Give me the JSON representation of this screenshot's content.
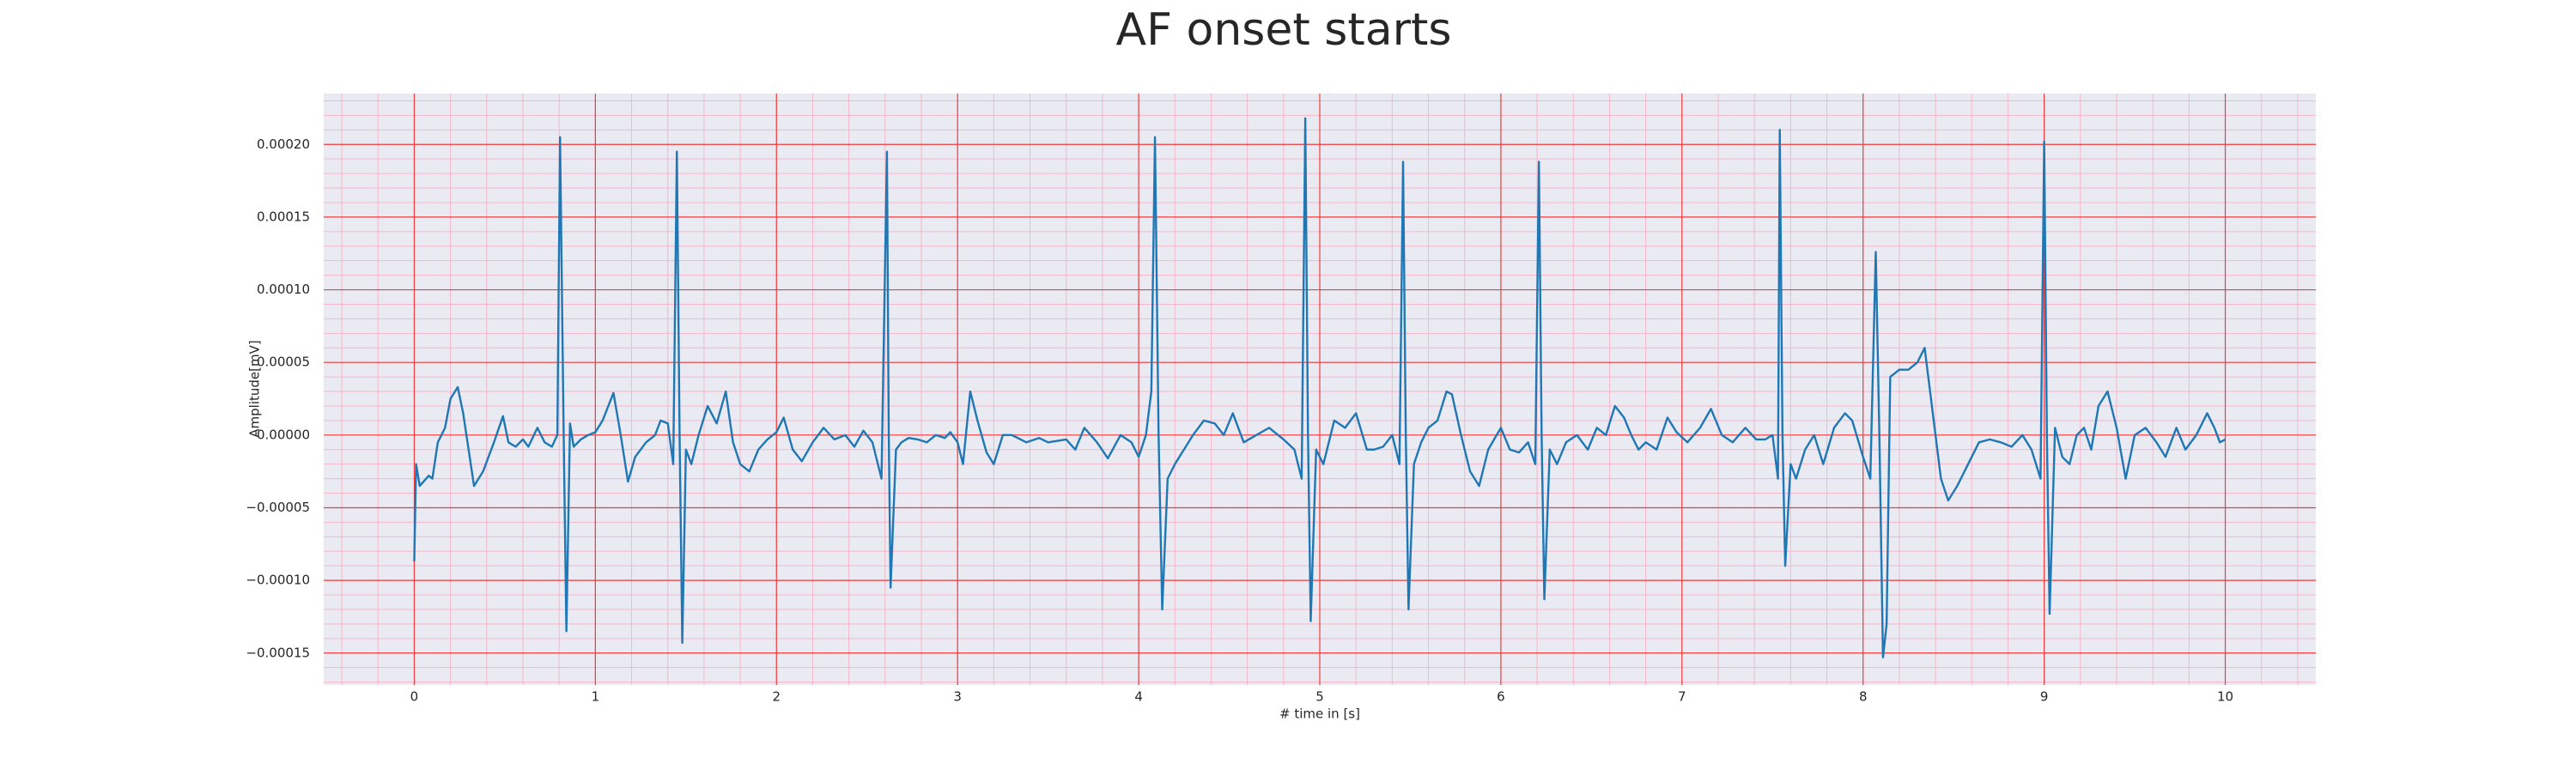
{
  "chart_data": {
    "type": "line",
    "title": "AF onset starts",
    "xlabel": "# time in [s]",
    "ylabel": "Amplitude[mV]",
    "color": "#1f77b4",
    "grid": true,
    "xlim": [
      -0.5,
      10.5
    ],
    "ylim": [
      -0.000172,
      0.000235
    ],
    "xticks": [
      0,
      1,
      2,
      3,
      4,
      5,
      6,
      7,
      8,
      9,
      10
    ],
    "yticks": [
      {
        "value": -0.00015,
        "label": "−0.00015"
      },
      {
        "value": -0.0001,
        "label": "−0.00010"
      },
      {
        "value": -5e-05,
        "label": "−0.00005"
      },
      {
        "value": 0,
        "label": "0.00000"
      },
      {
        "value": 5e-05,
        "label": "0.00005"
      },
      {
        "value": 0.0001,
        "label": "0.00010"
      },
      {
        "value": 0.00015,
        "label": "0.00015"
      },
      {
        "value": 0.0002,
        "label": "0.00020"
      }
    ],
    "x": [
      0,
      0.01,
      0.03,
      0.08,
      0.1,
      0.13,
      0.17,
      0.2,
      0.24,
      0.27,
      0.33,
      0.38,
      0.44,
      0.49,
      0.52,
      0.56,
      0.6,
      0.63,
      0.68,
      0.72,
      0.76,
      0.79,
      0.805,
      0.825,
      0.84,
      0.86,
      0.88,
      0.92,
      0.96,
      1.0,
      1.04,
      1.1,
      1.14,
      1.18,
      1.22,
      1.28,
      1.33,
      1.36,
      1.4,
      1.43,
      1.45,
      1.465,
      1.48,
      1.5,
      1.53,
      1.57,
      1.62,
      1.67,
      1.72,
      1.76,
      1.8,
      1.85,
      1.9,
      1.95,
      2.0,
      2.04,
      2.09,
      2.14,
      2.2,
      2.26,
      2.32,
      2.38,
      2.43,
      2.48,
      2.53,
      2.58,
      2.61,
      2.62,
      2.63,
      2.66,
      2.69,
      2.73,
      2.78,
      2.83,
      2.88,
      2.93,
      2.96,
      3.0,
      3.03,
      3.07,
      3.11,
      3.16,
      3.2,
      3.25,
      3.3,
      3.38,
      3.45,
      3.5,
      3.6,
      3.65,
      3.7,
      3.77,
      3.83,
      3.9,
      3.96,
      4.0,
      4.04,
      4.07,
      4.09,
      4.11,
      4.13,
      4.16,
      4.2,
      4.25,
      4.3,
      4.36,
      4.42,
      4.47,
      4.52,
      4.58,
      4.65,
      4.72,
      4.8,
      4.86,
      4.9,
      4.92,
      4.935,
      4.95,
      4.98,
      5.02,
      5.08,
      5.14,
      5.2,
      5.26,
      5.3,
      5.35,
      5.4,
      5.44,
      5.46,
      5.475,
      5.49,
      5.52,
      5.56,
      5.6,
      5.65,
      5.7,
      5.73,
      5.78,
      5.83,
      5.88,
      5.93,
      6.0,
      6.05,
      6.1,
      6.15,
      6.19,
      6.21,
      6.225,
      6.24,
      6.27,
      6.31,
      6.36,
      6.42,
      6.48,
      6.53,
      6.58,
      6.63,
      6.68,
      6.72,
      6.76,
      6.8,
      6.86,
      6.92,
      6.97,
      7.03,
      7.1,
      7.16,
      7.22,
      7.28,
      7.35,
      7.41,
      7.46,
      7.5,
      7.53,
      7.54,
      7.555,
      7.57,
      7.6,
      7.63,
      7.68,
      7.73,
      7.78,
      7.84,
      7.9,
      7.94,
      8.0,
      8.04,
      8.07,
      8.09,
      8.11,
      8.13,
      8.15,
      8.2,
      8.25,
      8.3,
      8.34,
      8.38,
      8.43,
      8.47,
      8.52,
      8.58,
      8.64,
      8.7,
      8.76,
      8.82,
      8.88,
      8.93,
      8.98,
      9.0,
      9.015,
      9.03,
      9.06,
      9.1,
      9.14,
      9.18,
      9.22,
      9.26,
      9.3,
      9.35,
      9.4,
      9.45,
      9.5,
      9.56,
      9.62,
      9.67,
      9.73,
      9.78,
      9.84,
      9.9,
      9.94,
      9.97,
      10.0
    ],
    "values": [
      -8.7e-05,
      -2e-05,
      -3.5e-05,
      -2.8e-05,
      -3e-05,
      -5e-06,
      5e-06,
      2.5e-05,
      3.3e-05,
      1.5e-05,
      -3.5e-05,
      -2.5e-05,
      -5e-06,
      1.3e-05,
      -5e-06,
      -8e-06,
      -3e-06,
      -8e-06,
      5e-06,
      -5e-06,
      -8e-06,
      0,
      0.000205,
      0,
      -0.000135,
      8e-06,
      -8e-06,
      -3e-06,
      0,
      2e-06,
      1e-05,
      2.9e-05,
      0,
      -3.2e-05,
      -1.5e-05,
      -5e-06,
      0,
      1e-05,
      8e-06,
      -2e-05,
      0.000195,
      0,
      -0.000143,
      -1e-05,
      -2e-05,
      0,
      2e-05,
      8e-06,
      3e-05,
      -5e-06,
      -2e-05,
      -2.5e-05,
      -1e-05,
      -3e-06,
      2e-06,
      1.2e-05,
      -1e-05,
      -1.8e-05,
      -5e-06,
      5e-06,
      -3e-06,
      0,
      -8e-06,
      3e-06,
      -5e-06,
      -3e-05,
      0.000195,
      0,
      -0.000105,
      -1e-05,
      -5e-06,
      -2e-06,
      -3e-06,
      -5e-06,
      0,
      -2e-06,
      2e-06,
      -5e-06,
      -2e-05,
      3e-05,
      1e-05,
      -1.2e-05,
      -2e-05,
      0,
      0,
      -5e-06,
      -2e-06,
      -5e-06,
      -3e-06,
      -1e-05,
      5e-06,
      -5e-06,
      -1.6e-05,
      0,
      -5e-06,
      -1.5e-05,
      0,
      3e-05,
      0.000205,
      0,
      -0.00012,
      -3e-05,
      -2e-05,
      -1e-05,
      0,
      1e-05,
      8e-06,
      0,
      1.5e-05,
      -5e-06,
      0,
      5e-06,
      -3e-06,
      -1e-05,
      -3e-05,
      0.000218,
      0,
      -0.000128,
      -1e-05,
      -2e-05,
      1e-05,
      5e-06,
      1.5e-05,
      -1e-05,
      -1e-05,
      -8e-06,
      0,
      -2e-05,
      0.000188,
      0,
      -0.00012,
      -2e-05,
      -5e-06,
      5e-06,
      1e-05,
      3e-05,
      2.8e-05,
      0,
      -2.5e-05,
      -3.5e-05,
      -1e-05,
      5e-06,
      -1e-05,
      -1.2e-05,
      -5e-06,
      -2e-05,
      0.000188,
      0,
      -0.000113,
      -1e-05,
      -2e-05,
      -5e-06,
      0,
      -1e-05,
      5e-06,
      0,
      2e-05,
      1.2e-05,
      0,
      -1e-05,
      -5e-06,
      -1e-05,
      1.2e-05,
      2e-06,
      -5e-06,
      5e-06,
      1.8e-05,
      0,
      -5e-06,
      5e-06,
      -3e-06,
      -3e-06,
      0,
      -3e-05,
      0.00021,
      0,
      -9e-05,
      -2e-05,
      -3e-05,
      -1e-05,
      0,
      -2e-05,
      5e-06,
      1.5e-05,
      1e-05,
      -1.5e-05,
      -3e-05,
      0.000126,
      0,
      -0.000153,
      -0.00013,
      4e-05,
      4.5e-05,
      4.5e-05,
      5e-05,
      6e-05,
      2e-05,
      -3e-05,
      -4.5e-05,
      -3.5e-05,
      -2e-05,
      -5e-06,
      -3e-06,
      -5e-06,
      -8e-06,
      0,
      -1e-05,
      -3e-05,
      0.000202,
      0,
      -0.000123,
      5e-06,
      -1.5e-05,
      -2e-05,
      0,
      5e-06,
      -1e-05,
      2e-05,
      3e-05,
      5e-06,
      -3e-05,
      0,
      5e-06,
      -5e-06,
      -1.5e-05,
      5e-06,
      -1e-05,
      0,
      1.5e-05,
      5e-06,
      -5e-06,
      -3e-06
    ]
  }
}
